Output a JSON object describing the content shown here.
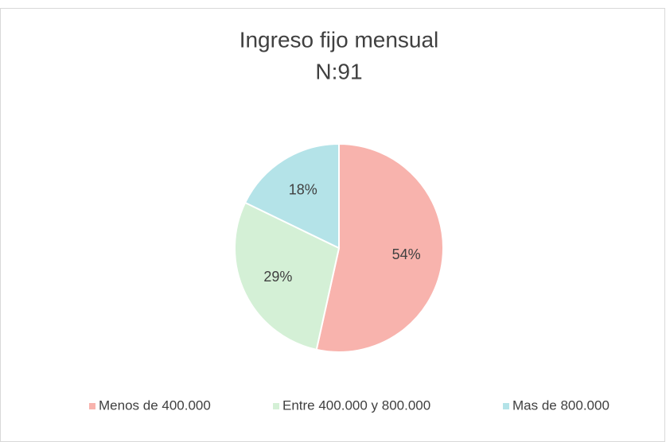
{
  "chart_data": {
    "type": "pie",
    "title": "Ingreso fijo mensual",
    "subtitle": "N:91",
    "categories": [
      "Menos de 400.000",
      "Entre 400.000 y 800.000",
      "Mas de 800.000"
    ],
    "values": [
      54,
      29,
      18
    ],
    "value_labels": [
      "54%",
      "29%",
      "18%"
    ],
    "colors": [
      "#f8b3ad",
      "#d4f0d6",
      "#b4e3e8"
    ],
    "legend": "bottom"
  }
}
